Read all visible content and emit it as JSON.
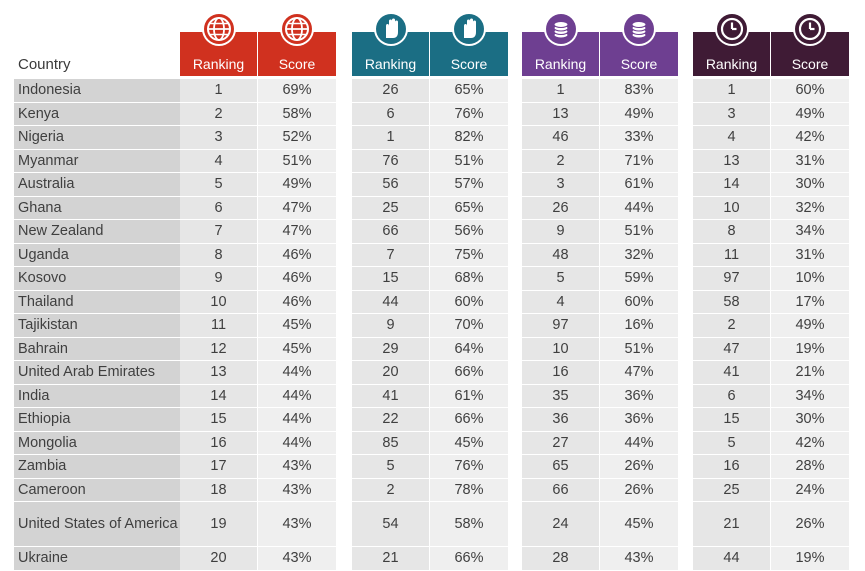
{
  "header": {
    "country_label": "Country"
  },
  "groups": [
    {
      "icon": "globe-icon",
      "color": "#d0311f",
      "ranking_label": "Ranking",
      "score_label": "Score"
    },
    {
      "icon": "raised-hand-icon",
      "color": "#1b6e84",
      "ranking_label": "Ranking",
      "score_label": "Score"
    },
    {
      "icon": "coin-stack-icon",
      "color": "#6e3f91",
      "ranking_label": "Ranking",
      "score_label": "Score"
    },
    {
      "icon": "clock-icon",
      "color": "#3f1b35",
      "ranking_label": "Ranking",
      "score_label": "Score"
    }
  ],
  "rows": [
    {
      "country": "Indonesia",
      "values": [
        "1",
        "69%",
        "26",
        "65%",
        "1",
        "83%",
        "1",
        "60%"
      ]
    },
    {
      "country": "Kenya",
      "values": [
        "2",
        "58%",
        "6",
        "76%",
        "13",
        "49%",
        "3",
        "49%"
      ]
    },
    {
      "country": "Nigeria",
      "values": [
        "3",
        "52%",
        "1",
        "82%",
        "46",
        "33%",
        "4",
        "42%"
      ]
    },
    {
      "country": "Myanmar",
      "values": [
        "4",
        "51%",
        "76",
        "51%",
        "2",
        "71%",
        "13",
        "31%"
      ]
    },
    {
      "country": "Australia",
      "values": [
        "5",
        "49%",
        "56",
        "57%",
        "3",
        "61%",
        "14",
        "30%"
      ]
    },
    {
      "country": "Ghana",
      "values": [
        "6",
        "47%",
        "25",
        "65%",
        "26",
        "44%",
        "10",
        "32%"
      ]
    },
    {
      "country": "New Zealand",
      "values": [
        "7",
        "47%",
        "66",
        "56%",
        "9",
        "51%",
        "8",
        "34%"
      ]
    },
    {
      "country": "Uganda",
      "values": [
        "8",
        "46%",
        "7",
        "75%",
        "48",
        "32%",
        "11",
        "31%"
      ]
    },
    {
      "country": "Kosovo",
      "values": [
        "9",
        "46%",
        "15",
        "68%",
        "5",
        "59%",
        "97",
        "10%"
      ]
    },
    {
      "country": "Thailand",
      "values": [
        "10",
        "46%",
        "44",
        "60%",
        "4",
        "60%",
        "58",
        "17%"
      ]
    },
    {
      "country": "Tajikistan",
      "values": [
        "11",
        "45%",
        "9",
        "70%",
        "97",
        "16%",
        "2",
        "49%"
      ]
    },
    {
      "country": "Bahrain",
      "values": [
        "12",
        "45%",
        "29",
        "64%",
        "10",
        "51%",
        "47",
        "19%"
      ]
    },
    {
      "country": "United Arab Emirates",
      "values": [
        "13",
        "44%",
        "20",
        "66%",
        "16",
        "47%",
        "41",
        "21%"
      ]
    },
    {
      "country": "India",
      "values": [
        "14",
        "44%",
        "41",
        "61%",
        "35",
        "36%",
        "6",
        "34%"
      ]
    },
    {
      "country": "Ethiopia",
      "values": [
        "15",
        "44%",
        "22",
        "66%",
        "36",
        "36%",
        "15",
        "30%"
      ]
    },
    {
      "country": "Mongolia",
      "values": [
        "16",
        "44%",
        "85",
        "45%",
        "27",
        "44%",
        "5",
        "42%"
      ]
    },
    {
      "country": "Zambia",
      "values": [
        "17",
        "43%",
        "5",
        "76%",
        "65",
        "26%",
        "16",
        "28%"
      ]
    },
    {
      "country": "Cameroon",
      "values": [
        "18",
        "43%",
        "2",
        "78%",
        "66",
        "26%",
        "25",
        "24%"
      ]
    },
    {
      "country": "United States of America",
      "values": [
        "19",
        "43%",
        "54",
        "58%",
        "24",
        "45%",
        "21",
        "26%"
      ]
    },
    {
      "country": "Ukraine",
      "values": [
        "20",
        "43%",
        "21",
        "66%",
        "28",
        "43%",
        "44",
        "19%"
      ]
    }
  ]
}
